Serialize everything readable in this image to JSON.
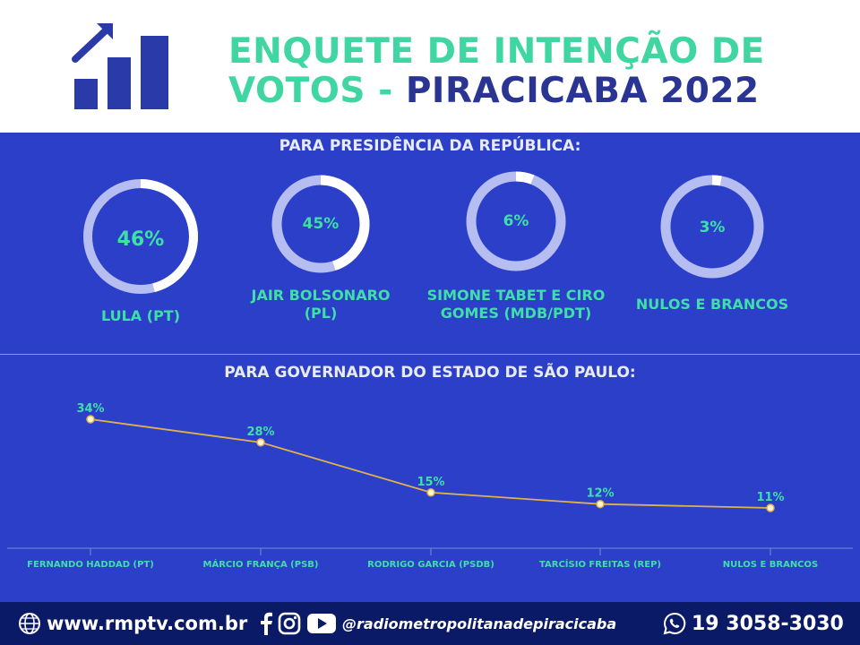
{
  "header": {
    "title_line1": "ENQUETE DE INTENÇÃO DE",
    "title_line2a": "VOTOS - ",
    "title_line2b": "PIRACICABA 2022",
    "logo_icon": "bar-chart-growth-icon"
  },
  "colors": {
    "main_bg": "#2c3fc8",
    "accent_green": "#3fe0a8",
    "title_green": "#3fd6a2",
    "title_navy": "#2a3593",
    "ring_light": "#b6bdf0",
    "ring_white": "#ffffff",
    "line": "#e0b14a",
    "footer_bg": "#0b1a66"
  },
  "chart_data": [
    {
      "type": "pie",
      "title": "PARA PRESIDÊNCIA DA REPÚBLICA:",
      "items": [
        {
          "label": "LULA (PT)",
          "value": 46,
          "value_label": "46%"
        },
        {
          "label": "JAIR BOLSONARO (PL)",
          "value": 45,
          "value_label": "45%"
        },
        {
          "label": "SIMONE TABET E CIRO GOMES (MDB/PDT)",
          "value": 6,
          "value_label": "6%"
        },
        {
          "label": "NULOS E BRANCOS",
          "value": 3,
          "value_label": "3%"
        }
      ]
    },
    {
      "type": "line",
      "title": "PARA GOVERNADOR DO ESTADO DE SÃO PAULO:",
      "categories": [
        "FERNANDO HADDAD (PT)",
        "MÁRCIO FRANÇA (PSB)",
        "RODRIGO GARCIA (PSDB)",
        "TARCÍSIO FREITAS (REP)",
        "NULOS E BRANCOS"
      ],
      "values": [
        34,
        28,
        15,
        12,
        11
      ],
      "value_labels": [
        "34%",
        "28%",
        "15%",
        "12%",
        "11%"
      ]
    }
  ],
  "footer": {
    "website": "www.rmptv.com.br",
    "social_handle": "@radiometropolitanadepiracicaba",
    "phone": "19 3058-3030",
    "icons": [
      "globe-icon",
      "facebook-icon",
      "instagram-icon",
      "youtube-icon",
      "whatsapp-icon"
    ]
  }
}
